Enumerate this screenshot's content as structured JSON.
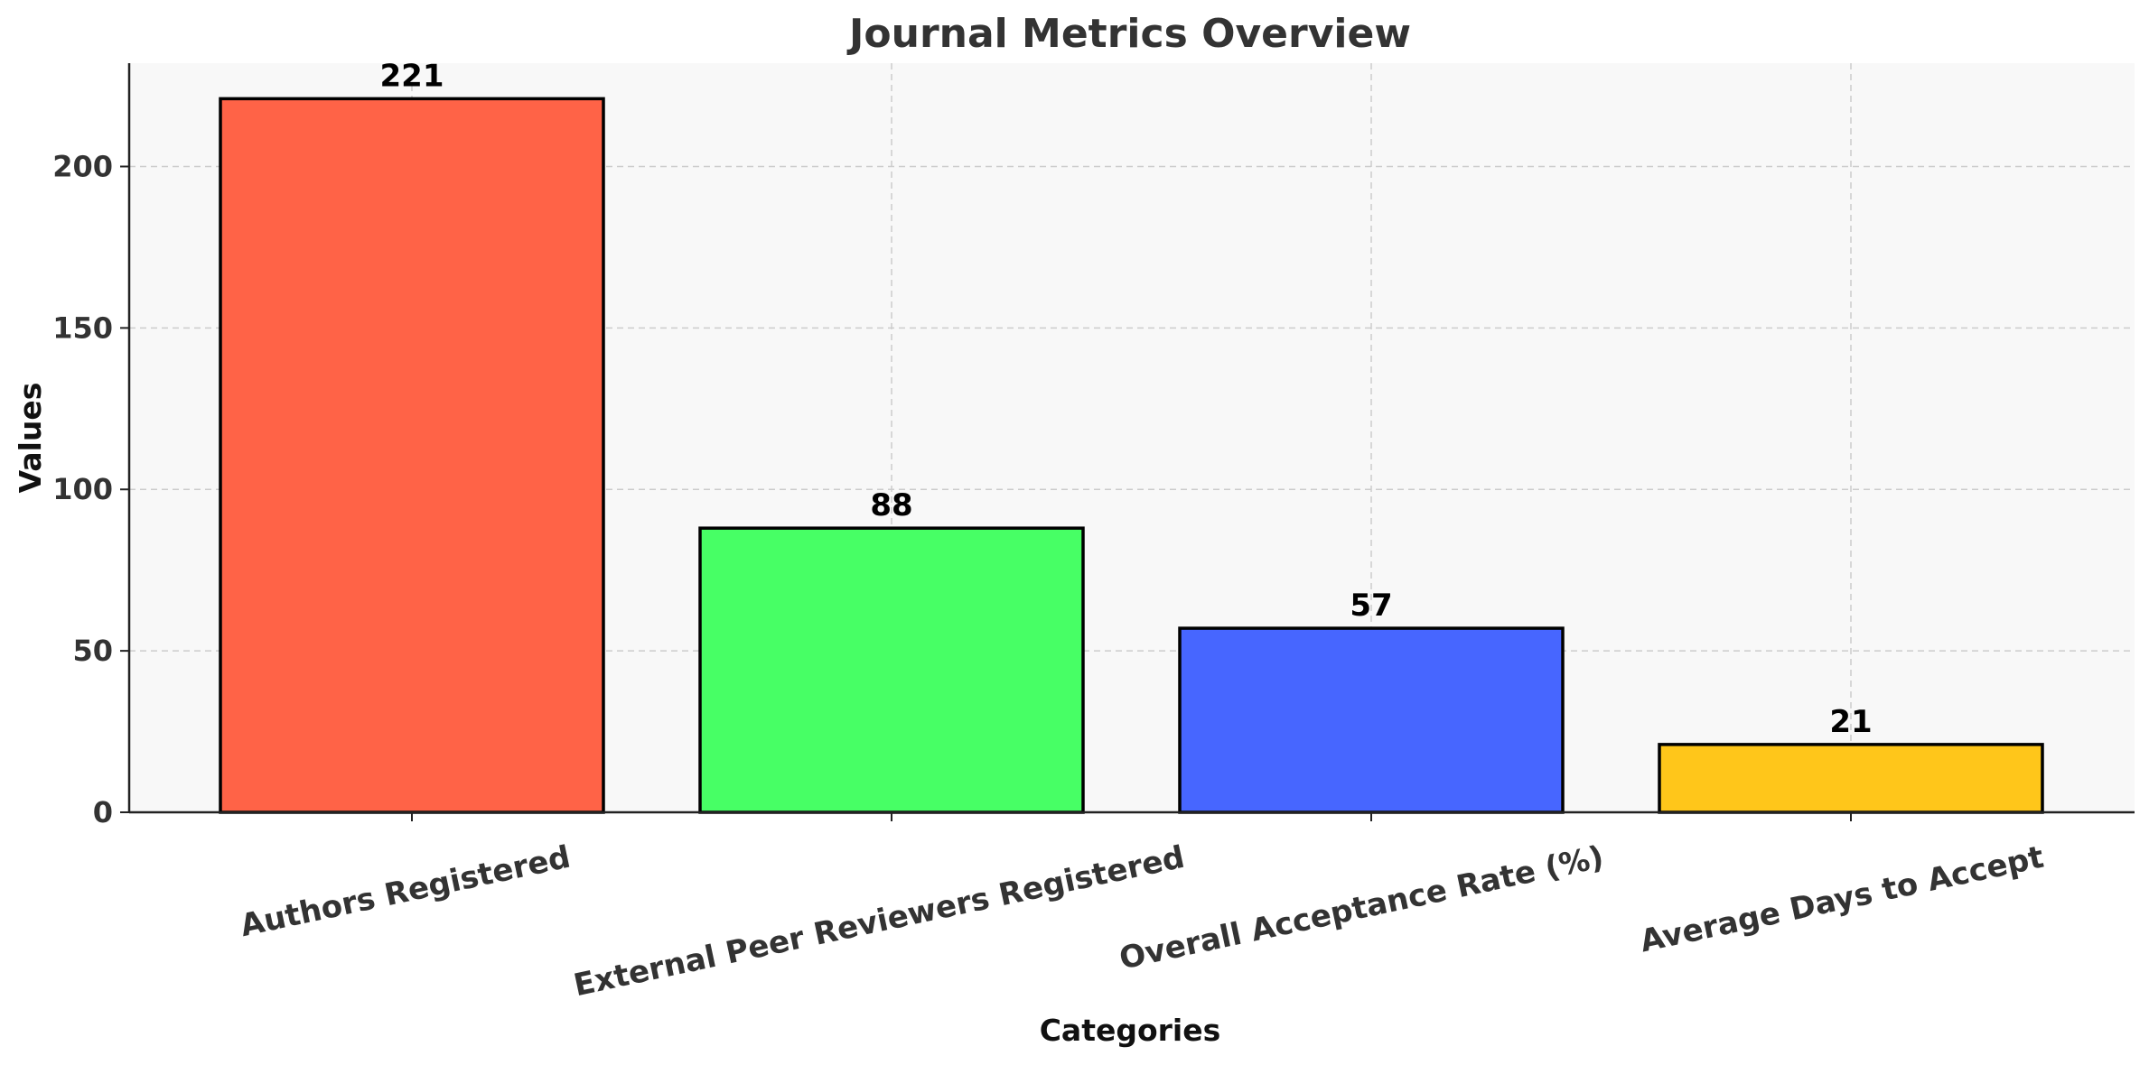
{
  "chart_data": {
    "type": "bar",
    "title": "Journal Metrics Overview",
    "xlabel": "Categories",
    "ylabel": "Values",
    "categories": [
      "Authors Registered",
      "External Peer Reviewers Registered",
      "Overall Acceptance Rate (%)",
      "Average Days to Accept"
    ],
    "values": [
      221,
      88,
      57,
      21
    ],
    "colors": [
      "#FF6347",
      "#47FF65",
      "#4766FF",
      "#FFC61A"
    ],
    "data_labels": [
      "221",
      "88",
      "57",
      "21"
    ],
    "ylim": [
      0,
      232
    ],
    "yticks": [
      0,
      50,
      100,
      150,
      200
    ],
    "ytick_labels": [
      "0",
      "50",
      "100",
      "150",
      "200"
    ],
    "grid": true,
    "plot_background": "#F8F8F8",
    "bar_edge_color": "#000000"
  }
}
